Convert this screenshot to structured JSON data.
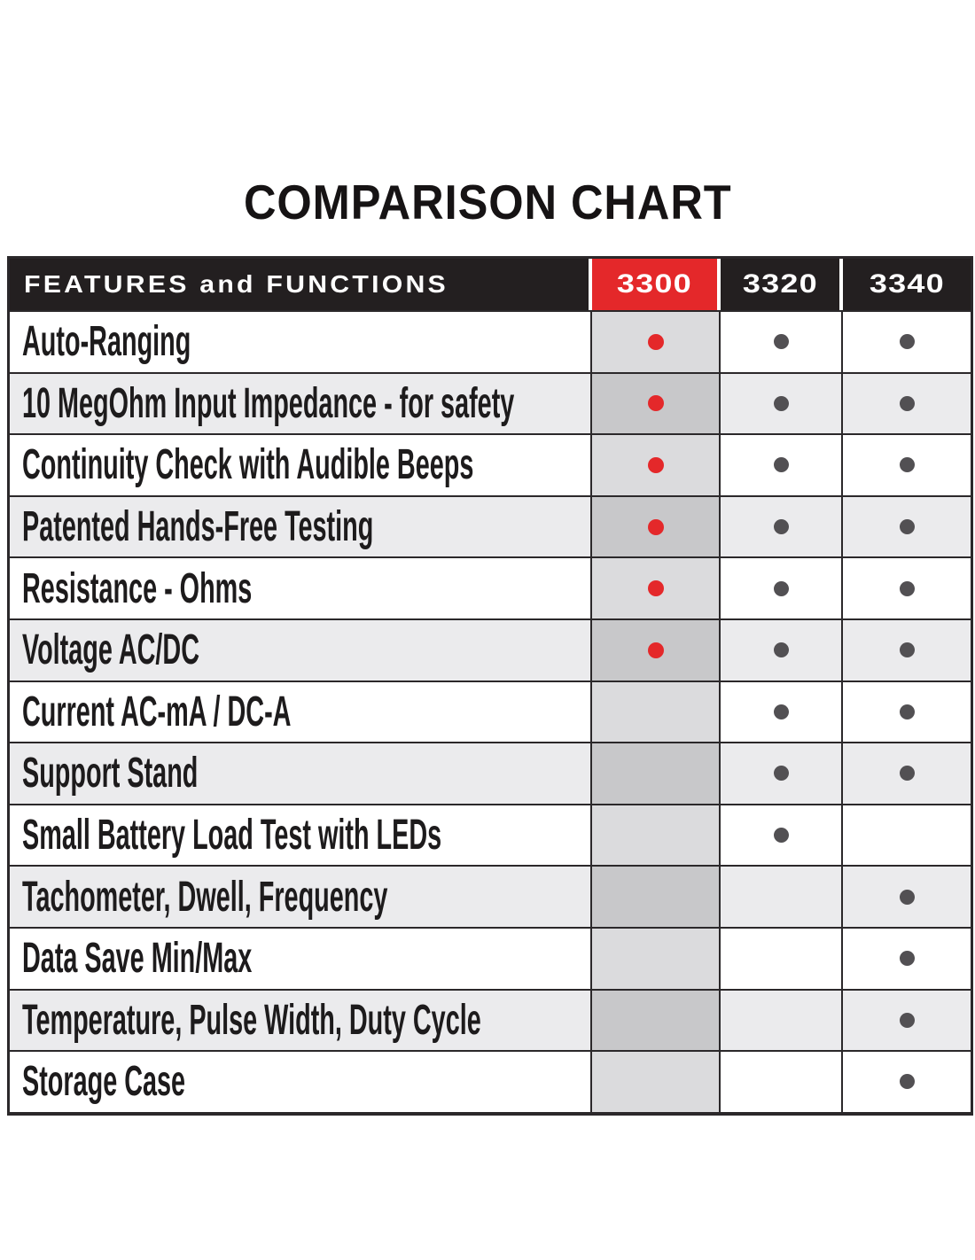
{
  "chart_data": {
    "type": "table",
    "title": "COMPARISON CHART",
    "header": {
      "features": "FEATURES and FUNCTIONS",
      "models": [
        "3300",
        "3320",
        "3340"
      ]
    },
    "rows": [
      {
        "feature": "Auto-Ranging",
        "marks": [
          true,
          true,
          true
        ]
      },
      {
        "feature": "10 MegOhm Input Impedance - for safety",
        "marks": [
          true,
          true,
          true
        ]
      },
      {
        "feature": "Continuity Check with Audible Beeps",
        "marks": [
          true,
          true,
          true
        ]
      },
      {
        "feature": "Patented Hands-Free Testing",
        "marks": [
          true,
          true,
          true
        ]
      },
      {
        "feature": "Resistance - Ohms",
        "marks": [
          true,
          true,
          true
        ]
      },
      {
        "feature": "Voltage AC/DC",
        "marks": [
          true,
          true,
          true
        ]
      },
      {
        "feature": "Current AC-mA / DC-A",
        "marks": [
          false,
          true,
          true
        ]
      },
      {
        "feature": "Support Stand",
        "marks": [
          false,
          true,
          true
        ]
      },
      {
        "feature": "Small Battery Load Test with LEDs",
        "marks": [
          false,
          true,
          false
        ]
      },
      {
        "feature": "Tachometer, Dwell, Frequency",
        "marks": [
          false,
          false,
          true
        ]
      },
      {
        "feature": "Data Save Min/Max",
        "marks": [
          false,
          false,
          true
        ]
      },
      {
        "feature": "Temperature, Pulse Width, Duty Cycle",
        "marks": [
          false,
          false,
          true
        ]
      },
      {
        "feature": "Storage Case",
        "marks": [
          false,
          false,
          true
        ]
      }
    ],
    "legend": "dot means feature present; red dot in highlighted 3300 column",
    "colors": {
      "accent_red": "#e4282a",
      "header_bg": "#231f20",
      "border": "#2b282a",
      "stripe_gray": "#ebebed",
      "col3300_light": "#dbdbdd",
      "col3300_dark": "#c8c8ca",
      "dot_gray": "#525053"
    }
  }
}
